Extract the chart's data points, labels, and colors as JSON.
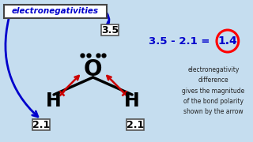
{
  "bg_color": "#c5ddef",
  "o_label": "O",
  "h_label": "H",
  "label_35": "3.5",
  "label_21": "2.1",
  "eq_text": "3.5 - 2.1 =",
  "result_text": "1.4",
  "desc_text": "electronegativity\ndifference\ngives the magnitude\nof the bond polarity\nshown by the arrow",
  "label_en": "electronegativities",
  "black_bond_color": "black",
  "red_arrow_color": "#cc0000",
  "blue_color": "#0000cc",
  "box_edge_color": "#555555",
  "text_dark": "#111111"
}
